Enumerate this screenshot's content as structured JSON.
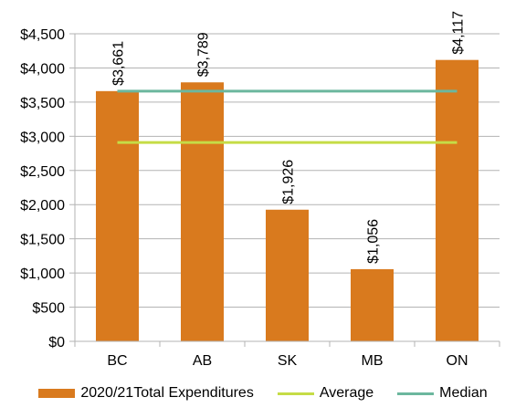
{
  "chart_data": {
    "type": "bar",
    "categories": [
      "BC",
      "AB",
      "SK",
      "MB",
      "ON"
    ],
    "series": [
      {
        "name": "2020/21Total Expenditures",
        "values": [
          3661,
          3789,
          1926,
          1056,
          4117
        ],
        "data_labels": [
          "$3,661",
          "$3,789",
          "$1,926",
          "$1,056",
          "$4,117"
        ],
        "color": "#d97a1e"
      }
    ],
    "reference_lines": [
      {
        "name": "Average",
        "value": 2910,
        "color": "#c5dc46"
      },
      {
        "name": "Median",
        "value": 3661,
        "color": "#6cb79e"
      }
    ],
    "y_ticks": [
      "$0",
      "$500",
      "$1,000",
      "$1,500",
      "$2,000",
      "$2,500",
      "$3,000",
      "$3,500",
      "$4,000",
      "$4,500"
    ],
    "ylim": [
      0,
      4500
    ],
    "grid": true,
    "legend_position": "bottom",
    "title": "",
    "xlabel": "",
    "ylabel": ""
  }
}
